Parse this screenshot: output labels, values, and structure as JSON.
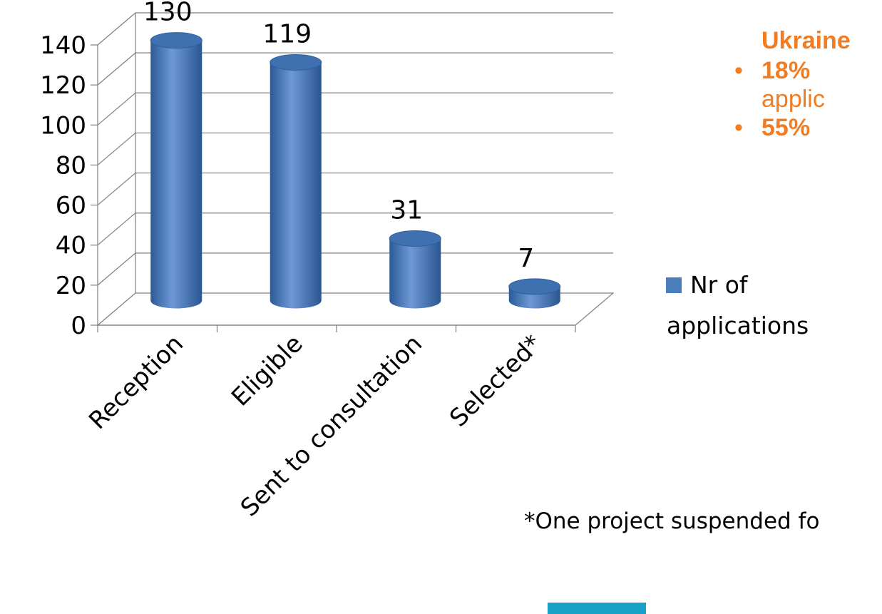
{
  "chart_data": {
    "type": "bar",
    "categories": [
      "Reception",
      "Eligible",
      "Sent to consultation",
      "Selected*"
    ],
    "series": [
      {
        "name": "Nr of applications",
        "values": [
          130,
          119,
          31,
          7
        ]
      }
    ],
    "data_labels": [
      "130",
      "119",
      "31",
      "7"
    ],
    "yticks": [
      "0",
      "20",
      "40",
      "60",
      "80",
      "100",
      "120",
      "140"
    ],
    "ylim": [
      0,
      140
    ],
    "title": "",
    "xlabel": "",
    "ylabel": "",
    "style": "3d-cylinder",
    "grid": true,
    "legend_position": "right",
    "bar_color": "#4a7ebb",
    "legend_lines": [
      "Nr of",
      "applications"
    ]
  },
  "side_panel": {
    "heading": "Ukraine",
    "items": [
      {
        "bullet": "•",
        "strong": "18%",
        "line2": "applic"
      },
      {
        "bullet": "•",
        "strong": "55%"
      }
    ]
  },
  "footnote": "*One project suspended fo",
  "colors": {
    "accent": "#f07d23",
    "decoration": "#19a1c8"
  }
}
